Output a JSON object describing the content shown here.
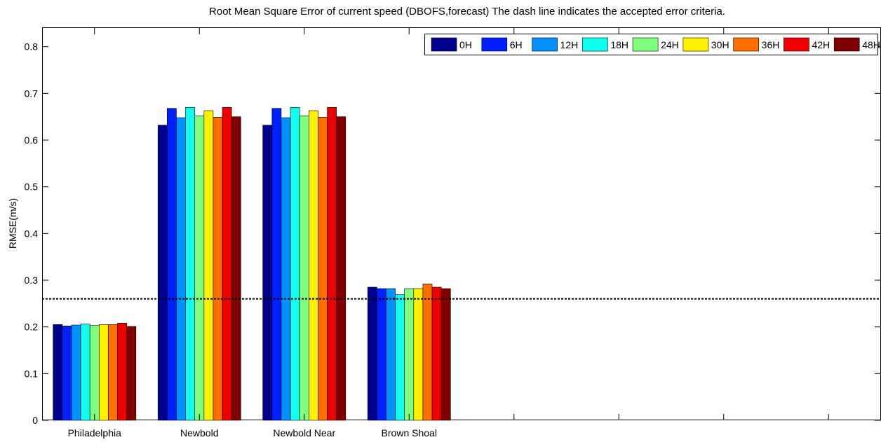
{
  "chart_data": {
    "type": "bar",
    "title": "Root Mean Square Error of current speed  (DBOFS,forecast)   The dash line indicates the accepted error criteria.",
    "xlabel": "",
    "ylabel": "RMSE(m/s)",
    "ylim": [
      0,
      0.84
    ],
    "yticks": [
      0,
      0.1,
      0.2,
      0.3,
      0.4,
      0.5,
      0.6,
      0.7,
      0.8
    ],
    "ytick_labels": [
      "0",
      "0.1",
      "0.2",
      "0.3",
      "0.4",
      "0.5",
      "0.6",
      "0.7",
      "0.8"
    ],
    "categories": [
      "Philadelphia",
      "Newbold",
      "Newbold Near",
      "Brown Shoal"
    ],
    "x_slots": 8,
    "grid": false,
    "legend_position": "top-right",
    "criteria_line": {
      "value": 0.26,
      "style": "dashed"
    },
    "series": [
      {
        "name": "0H",
        "color": "#00008F",
        "values": [
          0.205,
          0.632,
          0.632,
          0.285
        ]
      },
      {
        "name": "6H",
        "color": "#0020FF",
        "values": [
          0.202,
          0.668,
          0.668,
          0.282
        ]
      },
      {
        "name": "12H",
        "color": "#0090FF",
        "values": [
          0.204,
          0.648,
          0.648,
          0.282
        ]
      },
      {
        "name": "18H",
        "color": "#10FFEF",
        "values": [
          0.206,
          0.67,
          0.67,
          0.269
        ]
      },
      {
        "name": "24H",
        "color": "#80FF80",
        "values": [
          0.203,
          0.652,
          0.652,
          0.282
        ]
      },
      {
        "name": "30H",
        "color": "#FFF000",
        "values": [
          0.205,
          0.663,
          0.663,
          0.282
        ]
      },
      {
        "name": "36H",
        "color": "#FF7000",
        "values": [
          0.205,
          0.649,
          0.649,
          0.292
        ]
      },
      {
        "name": "42H",
        "color": "#EF0000",
        "values": [
          0.208,
          0.67,
          0.67,
          0.285
        ]
      },
      {
        "name": "48H",
        "color": "#800000",
        "values": [
          0.201,
          0.65,
          0.65,
          0.282
        ]
      }
    ]
  }
}
